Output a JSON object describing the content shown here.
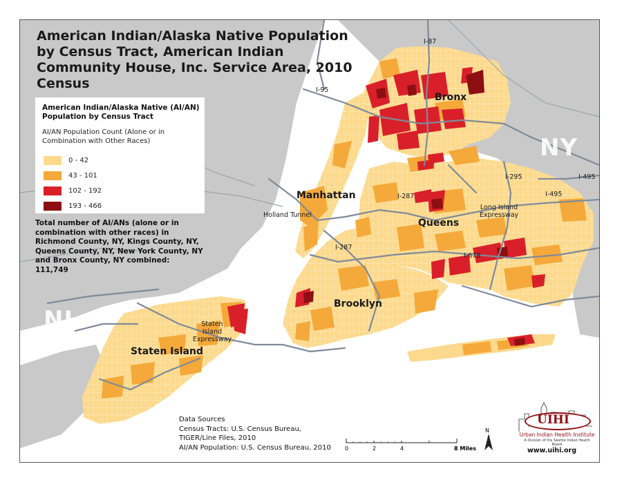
{
  "title": "American Indian/Alaska Native Population by Census Tract, American Indian Community House, Inc. Service Area, 2010 Census",
  "legend": {
    "title": "American Indian/Alaska Native (AI/AN) Population by Census Tract",
    "subtitle": "AI/AN Population Count (Alone or in Combination with Other Races)",
    "classes": [
      {
        "label": "0 - 42",
        "color": "#fcd98c"
      },
      {
        "label": "43 - 101",
        "color": "#f4a93a"
      },
      {
        "label": "102 - 192",
        "color": "#d9202a"
      },
      {
        "label": "193 - 466",
        "color": "#8e0f12"
      }
    ]
  },
  "total_note": "Total number of AI/ANs (alone or in combination with other races) in Richmond County, NY, Kings County, NY, Queens County, NY, New York County, NY and Bronx County, NY combined: 111,749",
  "places": {
    "bronx": "Bronx",
    "manhattan": "Manhattan",
    "queens": "Queens",
    "brooklyn": "Brooklyn",
    "staten_island": "Staten Island",
    "ny": "NY",
    "nj": "NJ",
    "holland_tunnel": "Holland Tunnel",
    "long_island_expressway": "Long Island Expressway",
    "staten_island_expressway": "Staten Island Expressway"
  },
  "highways": {
    "i87": "I-87",
    "i95": "I-95",
    "i295": "I-295",
    "i495a": "I-495",
    "i495b": "I-495",
    "i287a": "I-287",
    "i287b": "I-287",
    "i678": "I-678"
  },
  "sources": {
    "heading": "Data Sources",
    "line1": "Census Tracts: U.S. Census Bureau,",
    "line2": "TIGER/Line Files, 2010",
    "line3": "AI/AN Population: U.S. Census Bureau, 2010"
  },
  "scale": {
    "t0": "0",
    "t1": "2",
    "t2": "4",
    "t3": "8 Miles"
  },
  "north": "N",
  "logo": {
    "initials": "UIHI",
    "name": "Urban Indian Health Institute",
    "tagline": "A Division of the Seattle Indian Health Board",
    "url": "www.uihi.org"
  },
  "colors": {
    "land_outside": "#c9c9c9",
    "water": "#ffffff",
    "roads": "#7f8a9a",
    "tract_lines": "#ffffff"
  }
}
